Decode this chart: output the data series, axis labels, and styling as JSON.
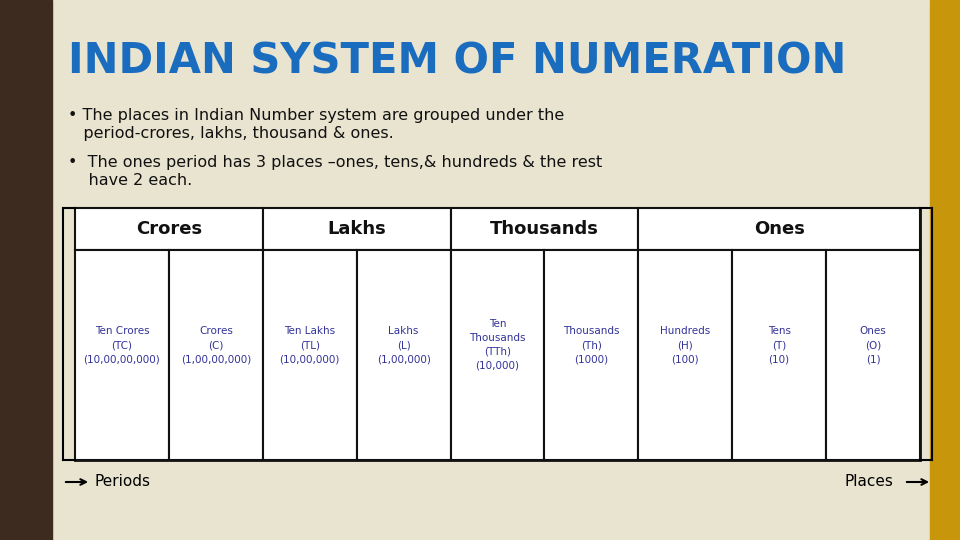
{
  "title": "INDIAN SYSTEM OF NUMERATION",
  "title_color": "#1a6cbf",
  "bg_color": "#e8e4d0",
  "left_bar_color": "#3d2b1f",
  "right_bar_color": "#c8960a",
  "bullet1_line1": "• The places in Indian Number system are grouped under the",
  "bullet1_line2": "   period-crores, lakhs, thousand & ones.",
  "bullet2_line1": "•  The ones period has 3 places –ones, tens,& hundreds & the rest",
  "bullet2_line2": "    have 2 each.",
  "periods": [
    "Crores",
    "Lakhs",
    "Thousands",
    "Ones"
  ],
  "period_spans": [
    2,
    2,
    2,
    3
  ],
  "period_starts": [
    0,
    2,
    4,
    6
  ],
  "columns": [
    "Ten Crores\n(TC)\n(10,00,00,000)",
    "Crores\n(C)\n(1,00,00,000)",
    "Ten Lakhs\n(TL)\n(10,00,000)",
    "Lakhs\n(L)\n(1,00,000)",
    "Ten\nThousands\n(TTh)\n(10,000)",
    "Thousands\n(Th)\n(1000)",
    "Hundreds\n(H)\n(100)",
    "Tens\n(T)\n(10)",
    "Ones\n(O)\n(1)"
  ],
  "cell_text_color": "#333399",
  "header_text_color": "#111111",
  "table_border_color": "#111111",
  "periods_label": "→ Periods",
  "places_label": "Places ←"
}
